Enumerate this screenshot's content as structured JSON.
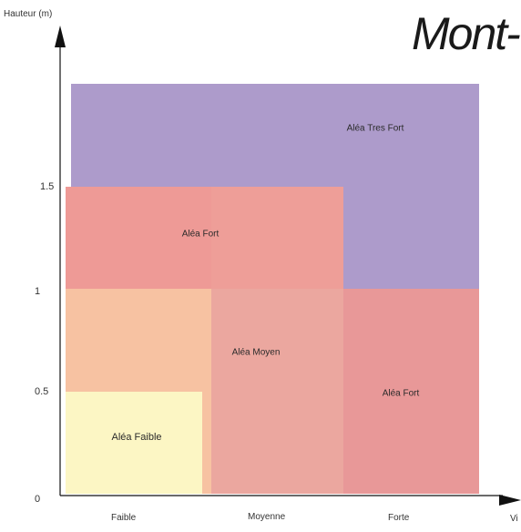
{
  "title": "Mont-",
  "axes": {
    "y_label": "Hauteur (m)",
    "y_ticks": [
      "0",
      "0.5",
      "1",
      "1.5"
    ],
    "x_label": "Vi",
    "x_categories": [
      "Faible",
      "Moyenne",
      "Forte"
    ]
  },
  "zones": {
    "tres_fort": "Aléa Tres Fort",
    "fort_top": "Aléa Fort",
    "moyen": "Aléa Moyen",
    "fort_right": "Aléa Fort",
    "faible": "Aléa Faible"
  },
  "colors": {
    "tres_fort": "#ad9bcb",
    "fort": "#ee9a96",
    "fort_right": "#e89898",
    "moyen": "#eba79f",
    "orange": "#f7c2a2",
    "faible": "#fcf6c4"
  }
}
